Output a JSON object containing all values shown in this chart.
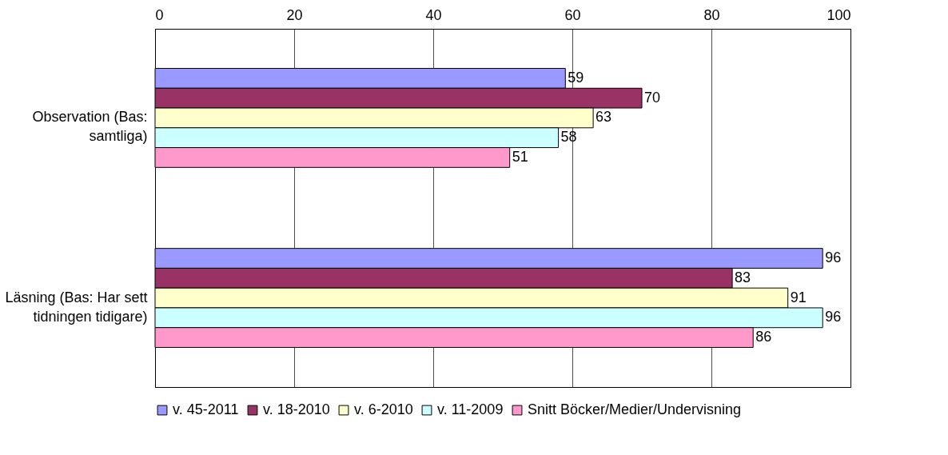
{
  "chart_data": {
    "type": "bar",
    "orientation": "horizontal",
    "categories": [
      "Observation (Bas: samtliga)",
      "Läsning (Bas: Har sett tidningen tidigare)"
    ],
    "series": [
      {
        "name": "v. 45-2011",
        "color": "#9999ff",
        "values": [
          59,
          96
        ]
      },
      {
        "name": "v. 18-2010",
        "color": "#993366",
        "values": [
          70,
          83
        ]
      },
      {
        "name": "v. 6-2010",
        "color": "#ffffcc",
        "values": [
          63,
          91
        ]
      },
      {
        "name": "v. 11-2009",
        "color": "#ccffff",
        "values": [
          58,
          96
        ]
      },
      {
        "name": "Snitt Böcker/Medier/Undervisning",
        "color": "#ff99cc",
        "values": [
          51,
          86
        ]
      }
    ],
    "xlim": [
      0,
      100
    ],
    "xticks": [
      0,
      20,
      40,
      60,
      80,
      100
    ],
    "grid": "x",
    "legend": "bottom",
    "data_labels": true
  }
}
